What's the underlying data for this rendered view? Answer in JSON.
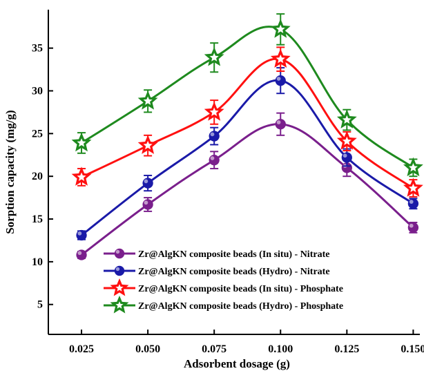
{
  "chart_data": {
    "type": "line",
    "title": "",
    "xlabel": "Adsorbent dosage (g)",
    "ylabel": "Sorption capacity (mg/g)",
    "x": [
      0.025,
      0.05,
      0.075,
      0.1,
      0.125,
      0.15
    ],
    "x_tick_labels": [
      "0.025",
      "0.050",
      "0.075",
      "0.100",
      "0.125",
      "0.150"
    ],
    "xlim": [
      0.0125,
      0.1525
    ],
    "ylim": [
      1.5,
      39.5
    ],
    "y_ticks": [
      5,
      10,
      15,
      20,
      25,
      30,
      35
    ],
    "grid": false,
    "legend_position": "bottom-left",
    "series": [
      {
        "name": "Zr@AlgKN composite beads (In situ) - Nitrate",
        "color": "#7a1f8c",
        "marker": "circle",
        "values": [
          10.8,
          16.7,
          21.9,
          26.1,
          21.0,
          14.0
        ],
        "errors": [
          0.4,
          0.8,
          1.0,
          1.3,
          1.0,
          0.6
        ]
      },
      {
        "name": "Zr@AlgKN composite beads (Hydro) - Nitrate",
        "color": "#1a1aa8",
        "marker": "circle",
        "values": [
          13.1,
          19.2,
          24.7,
          31.2,
          22.2,
          16.8
        ],
        "errors": [
          0.5,
          0.9,
          1.0,
          1.5,
          1.0,
          0.6
        ]
      },
      {
        "name": "Zr@AlgKN composite beads (In situ) - Phosphate",
        "color": "#ff1010",
        "marker": "star",
        "values": [
          19.9,
          23.6,
          27.5,
          33.7,
          24.1,
          18.6
        ],
        "errors": [
          1.0,
          1.2,
          1.4,
          1.4,
          1.1,
          1.0
        ]
      },
      {
        "name": "Zr@AlgKN composite beads (Hydro) - Phosphate",
        "color": "#1e8a1e",
        "marker": "star",
        "values": [
          23.9,
          28.8,
          33.9,
          37.2,
          26.6,
          21.0
        ],
        "errors": [
          1.2,
          1.3,
          1.7,
          1.8,
          1.2,
          1.0
        ]
      }
    ]
  }
}
